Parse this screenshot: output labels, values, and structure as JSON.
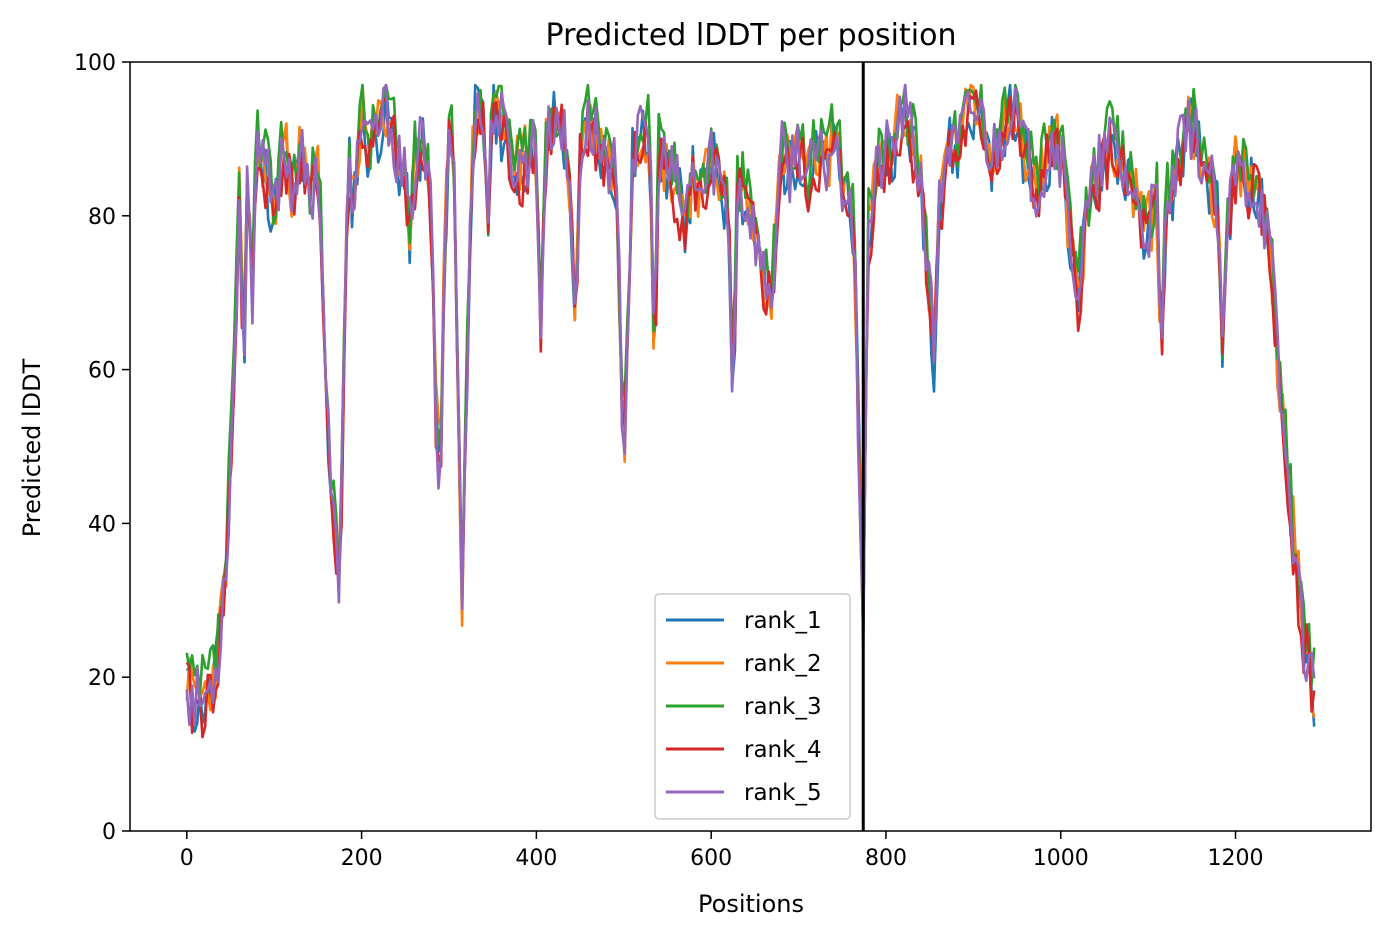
{
  "chart_data": {
    "type": "line",
    "title": "Predicted lDDT per position",
    "xlabel": "Positions",
    "ylabel": "Predicted lDDT",
    "xlim": [
      -65,
      1355
    ],
    "ylim": [
      0,
      100
    ],
    "xticks": [
      0,
      200,
      400,
      600,
      800,
      1000,
      1200
    ],
    "yticks": [
      0,
      20,
      40,
      60,
      80,
      100
    ],
    "grid": false,
    "legend_position": "lower-center",
    "vline_x": 774,
    "base_profile": {
      "x": [
        0,
        5,
        15,
        25,
        35,
        45,
        50,
        55,
        60,
        65,
        70,
        75,
        80,
        85,
        90,
        100,
        110,
        120,
        130,
        140,
        150,
        155,
        160,
        165,
        170,
        175,
        180,
        185,
        190,
        200,
        210,
        220,
        230,
        240,
        250,
        255,
        260,
        270,
        280,
        285,
        290,
        295,
        300,
        305,
        310,
        315,
        320,
        325,
        330,
        340,
        345,
        350,
        360,
        370,
        380,
        390,
        400,
        405,
        410,
        420,
        430,
        440,
        445,
        450,
        460,
        470,
        480,
        490,
        495,
        500,
        510,
        520,
        530,
        535,
        540,
        550,
        560,
        570,
        580,
        590,
        600,
        610,
        620,
        625,
        630,
        640,
        650,
        660,
        670,
        680,
        690,
        700,
        710,
        720,
        730,
        740,
        750,
        760,
        765,
        770,
        774,
        776,
        780,
        790,
        800,
        810,
        820,
        830,
        840,
        850,
        855,
        860,
        870,
        880,
        890,
        900,
        910,
        920,
        930,
        940,
        950,
        960,
        970,
        980,
        990,
        1000,
        1010,
        1020,
        1030,
        1040,
        1050,
        1060,
        1070,
        1080,
        1090,
        1100,
        1110,
        1115,
        1120,
        1130,
        1140,
        1150,
        1160,
        1170,
        1180,
        1185,
        1190,
        1200,
        1210,
        1220,
        1230,
        1240,
        1245,
        1250,
        1255,
        1260,
        1265,
        1270,
        1275,
        1280,
        1285,
        1290
      ],
      "y": [
        20,
        17,
        17,
        18,
        22,
        35,
        48,
        62,
        82,
        60,
        88,
        70,
        92,
        85,
        86,
        80,
        90,
        84,
        88,
        82,
        87,
        75,
        55,
        45,
        36,
        33,
        60,
        88,
        82,
        93,
        88,
        92,
        94,
        88,
        84,
        78,
        86,
        90,
        80,
        55,
        45,
        75,
        92,
        90,
        60,
        30,
        55,
        85,
        94,
        92,
        80,
        95,
        92,
        88,
        86,
        88,
        90,
        64,
        88,
        93,
        92,
        80,
        65,
        88,
        92,
        90,
        88,
        86,
        70,
        48,
        88,
        90,
        92,
        60,
        88,
        86,
        84,
        80,
        86,
        82,
        88,
        85,
        80,
        55,
        84,
        82,
        78,
        72,
        70,
        88,
        86,
        90,
        84,
        88,
        86,
        90,
        85,
        84,
        70,
        45,
        28,
        50,
        78,
        86,
        88,
        90,
        94,
        90,
        85,
        70,
        62,
        80,
        90,
        88,
        92,
        94,
        93,
        88,
        90,
        94,
        92,
        88,
        84,
        86,
        90,
        88,
        78,
        70,
        80,
        85,
        88,
        90,
        86,
        84,
        80,
        78,
        82,
        58,
        80,
        85,
        90,
        92,
        88,
        85,
        80,
        60,
        78,
        86,
        85,
        84,
        82,
        75,
        68,
        58,
        52,
        45,
        40,
        35,
        28,
        24,
        22,
        18
      ]
    },
    "series": [
      {
        "name": "rank_1",
        "color": "#1f77b4",
        "offset": -0.5,
        "seed": 11
      },
      {
        "name": "rank_2",
        "color": "#ff7f0e",
        "offset": 0.3,
        "seed": 23
      },
      {
        "name": "rank_3",
        "color": "#2ca02c",
        "offset": 1.5,
        "seed": 37
      },
      {
        "name": "rank_4",
        "color": "#d62728",
        "offset": -1.2,
        "seed": 41
      },
      {
        "name": "rank_5",
        "color": "#9467bd",
        "offset": 0.0,
        "seed": 53
      }
    ]
  }
}
